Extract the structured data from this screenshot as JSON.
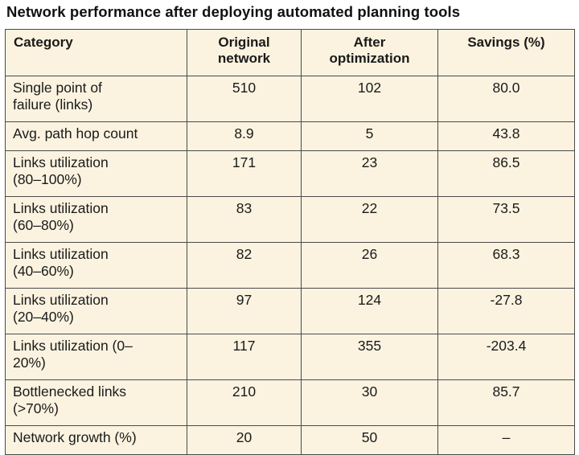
{
  "title": "Network performance after deploying automated planning tools",
  "headers": [
    "Category",
    "Original network",
    "After optimization",
    "Savings (%)"
  ],
  "rows": [
    {
      "category": "Single point of failure (links)",
      "original": "510",
      "after": "102",
      "savings": "80.0"
    },
    {
      "category": "Avg. path hop count",
      "original": "8.9",
      "after": "5",
      "savings": "43.8"
    },
    {
      "category": "Links utilization (80–100%)",
      "original": "171",
      "after": "23",
      "savings": "86.5"
    },
    {
      "category": "Links utilization (60–80%)",
      "original": "83",
      "after": "22",
      "savings": "73.5"
    },
    {
      "category": "Links utilization (40–60%)",
      "original": "82",
      "after": "26",
      "savings": "68.3"
    },
    {
      "category": "Links utilization (20–40%)",
      "original": "97",
      "after": "124",
      "savings": "-27.8"
    },
    {
      "category": "Links utilization (0–20%)",
      "original": "117",
      "after": "355",
      "savings": "-203.4"
    },
    {
      "category": "Bottlenecked links (>70%)",
      "original": "210",
      "after": "30",
      "savings": "85.7"
    },
    {
      "category": "Network growth (%)",
      "original": "20",
      "after": "50",
      "savings": "–"
    }
  ],
  "colors": {
    "cell_background": "#fbf3e0",
    "border": "#4a4a4a",
    "text": "#1a1a1a"
  }
}
